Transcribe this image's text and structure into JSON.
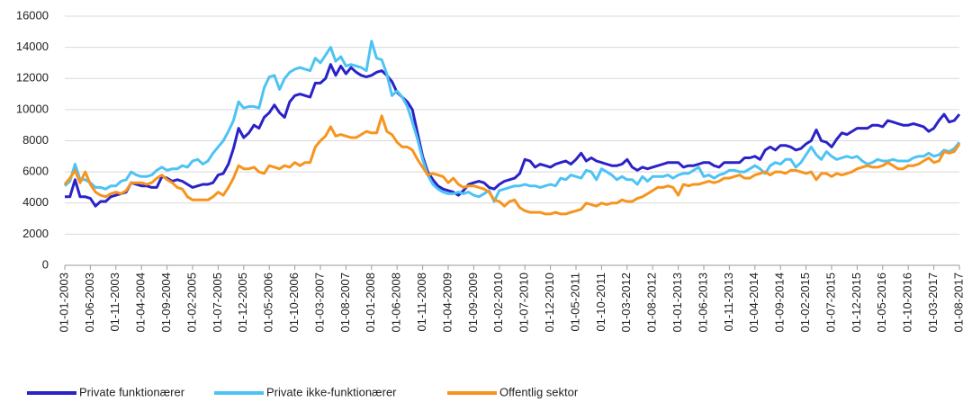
{
  "chart_data": {
    "type": "line",
    "categories": [
      "01-01-2003",
      null,
      null,
      null,
      null,
      "01-06-2003",
      null,
      null,
      null,
      null,
      "01-11-2003",
      null,
      null,
      null,
      null,
      "01-04-2004",
      null,
      null,
      null,
      null,
      "01-09-2004",
      null,
      null,
      null,
      null,
      "01-02-2005",
      null,
      null,
      null,
      null,
      "01-07-2005",
      null,
      null,
      null,
      null,
      "01-12-2005",
      null,
      null,
      null,
      null,
      "01-05-2006",
      null,
      null,
      null,
      null,
      "01-10-2006",
      null,
      null,
      null,
      null,
      "01-03-2007",
      null,
      null,
      null,
      null,
      "01-08-2007",
      null,
      null,
      null,
      null,
      "01-01-2008",
      null,
      null,
      null,
      null,
      "01-06-2008",
      null,
      null,
      null,
      null,
      "01-11-2008",
      null,
      null,
      null,
      null,
      "01-04-2009",
      null,
      null,
      null,
      null,
      "01-09-2009",
      null,
      null,
      null,
      null,
      "01-02-2010",
      null,
      null,
      null,
      null,
      "01-07-2010",
      null,
      null,
      null,
      null,
      "01-12-2010",
      null,
      null,
      null,
      null,
      "01-05-2011",
      null,
      null,
      null,
      null,
      "01-10-2011",
      null,
      null,
      null,
      null,
      "01-03-2012",
      null,
      null,
      null,
      null,
      "01-08-2012",
      null,
      null,
      null,
      null,
      "01-01-2013",
      null,
      null,
      null,
      null,
      "01-06-2013",
      null,
      null,
      null,
      null,
      "01-11-2013",
      null,
      null,
      null,
      null,
      "01-04-2014",
      null,
      null,
      null,
      null,
      "01-09-2014",
      null,
      null,
      null,
      null,
      "01-02-2015",
      null,
      null,
      null,
      null,
      "01-07-2015",
      null,
      null,
      null,
      null,
      "01-12-2015",
      null,
      null,
      null,
      null,
      "01-05-2016",
      null,
      null,
      null,
      null,
      "01-10-2016",
      null,
      null,
      null,
      null,
      "01-03-2017",
      null,
      null,
      null,
      null,
      "01-08-2017"
    ],
    "series": [
      {
        "name": "Private funktionærer",
        "color": "#2a22c8",
        "values": [
          4400,
          4400,
          5500,
          4400,
          4400,
          4300,
          3800,
          4100,
          4100,
          4400,
          4500,
          4600,
          4700,
          5300,
          5200,
          5100,
          5100,
          5000,
          5000,
          5700,
          5600,
          5400,
          5500,
          5400,
          5200,
          5000,
          5100,
          5200,
          5200,
          5300,
          5800,
          5900,
          6500,
          7500,
          8800,
          8200,
          8500,
          9000,
          8800,
          9500,
          9800,
          10300,
          9800,
          9500,
          10500,
          10900,
          11000,
          10900,
          10800,
          11700,
          11700,
          12000,
          12900,
          12200,
          12800,
          12300,
          12700,
          12400,
          12200,
          12100,
          12200,
          12400,
          12500,
          12200,
          11800,
          11100,
          10800,
          10500,
          10000,
          8500,
          7000,
          6000,
          5500,
          5100,
          4900,
          4800,
          4700,
          4500,
          4800,
          5200,
          5300,
          5400,
          5300,
          5000,
          4900,
          5200,
          5400,
          5500,
          5600,
          5900,
          6800,
          6700,
          6300,
          6500,
          6400,
          6300,
          6500,
          6600,
          6700,
          6500,
          6800,
          7200,
          6700,
          6900,
          6700,
          6600,
          6500,
          6400,
          6400,
          6500,
          6800,
          6300,
          6100,
          6300,
          6200,
          6300,
          6400,
          6500,
          6600,
          6600,
          6600,
          6300,
          6400,
          6400,
          6500,
          6600,
          6600,
          6400,
          6300,
          6600,
          6600,
          6600,
          6600,
          6900,
          6900,
          7000,
          6800,
          7400,
          7600,
          7400,
          7700,
          7700,
          7600,
          7400,
          7500,
          7800,
          8000,
          8700,
          8000,
          7900,
          7600,
          8100,
          8500,
          8400,
          8600,
          8800,
          8800,
          8800,
          9000,
          9000,
          8900,
          9300,
          9200,
          9100,
          9000,
          9000,
          9100,
          9000,
          8900,
          8600,
          8800,
          9300,
          9700,
          9200,
          9300,
          9700
        ]
      },
      {
        "name": "Private ikke-funktionærer",
        "color": "#4dc3f4",
        "values": [
          5100,
          5400,
          6500,
          5500,
          5500,
          5300,
          5000,
          5000,
          4900,
          5100,
          5100,
          5400,
          5500,
          6000,
          5800,
          5700,
          5700,
          5800,
          6100,
          6300,
          6100,
          6200,
          6200,
          6400,
          6300,
          6700,
          6800,
          6500,
          6700,
          7200,
          7600,
          8000,
          8600,
          9300,
          10500,
          10100,
          10200,
          10200,
          10100,
          11400,
          12100,
          12200,
          11300,
          12000,
          12400,
          12600,
          12700,
          12600,
          12500,
          13300,
          13000,
          13500,
          14000,
          13100,
          13400,
          12800,
          12900,
          12800,
          12700,
          12500,
          14400,
          13300,
          13200,
          12300,
          10900,
          11200,
          10800,
          10200,
          9200,
          8100,
          6800,
          5800,
          5200,
          4900,
          4700,
          4600,
          4600,
          4700,
          4600,
          4700,
          4500,
          4400,
          4600,
          4800,
          4100,
          4800,
          4900,
          5000,
          5100,
          5100,
          5200,
          5100,
          5100,
          5000,
          5100,
          5200,
          5100,
          5600,
          5500,
          5800,
          5700,
          5600,
          6100,
          6000,
          5500,
          6200,
          6000,
          5800,
          5500,
          5700,
          5500,
          5500,
          5200,
          5700,
          5400,
          5700,
          5700,
          5700,
          5800,
          5600,
          5800,
          5900,
          5900,
          6100,
          6300,
          5700,
          5800,
          5600,
          5800,
          5900,
          6100,
          6100,
          6000,
          6000,
          6200,
          6400,
          6200,
          5900,
          6400,
          6600,
          6500,
          6800,
          6800,
          6300,
          6600,
          7100,
          7600,
          7100,
          6800,
          7300,
          7000,
          6800,
          6900,
          7000,
          6900,
          7000,
          6700,
          6500,
          6600,
          6800,
          6700,
          6700,
          6800,
          6700,
          6700,
          6700,
          6900,
          7000,
          7000,
          7200,
          7000,
          7100,
          7400,
          7300,
          7500,
          7900
        ]
      },
      {
        "name": "Offentlig sektor",
        "color": "#f7941d",
        "values": [
          5200,
          5600,
          6100,
          5300,
          6000,
          5200,
          4700,
          4500,
          4400,
          4600,
          4700,
          4600,
          4800,
          5300,
          5300,
          5300,
          5200,
          5300,
          5600,
          5800,
          5500,
          5300,
          5000,
          4900,
          4400,
          4200,
          4200,
          4200,
          4200,
          4400,
          4700,
          4500,
          5000,
          5600,
          6400,
          6200,
          6200,
          6300,
          6000,
          5900,
          6400,
          6300,
          6200,
          6400,
          6300,
          6600,
          6400,
          6600,
          6600,
          7600,
          8000,
          8300,
          8900,
          8300,
          8400,
          8300,
          8200,
          8200,
          8400,
          8600,
          8500,
          8500,
          9600,
          8600,
          8400,
          7900,
          7600,
          7600,
          7400,
          6800,
          6300,
          5800,
          5900,
          5800,
          5700,
          5300,
          5600,
          5200,
          5000,
          5100,
          5100,
          5000,
          4900,
          4700,
          4200,
          4100,
          3800,
          4100,
          4200,
          3700,
          3500,
          3400,
          3400,
          3400,
          3300,
          3300,
          3400,
          3300,
          3300,
          3400,
          3500,
          3600,
          4000,
          3900,
          3800,
          4000,
          3900,
          4000,
          4000,
          4200,
          4100,
          4100,
          4300,
          4400,
          4600,
          4800,
          5000,
          5000,
          5100,
          5000,
          4500,
          5200,
          5100,
          5200,
          5200,
          5300,
          5400,
          5300,
          5400,
          5600,
          5600,
          5700,
          5800,
          5600,
          5600,
          5800,
          5900,
          6000,
          5800,
          6000,
          6000,
          5900,
          6100,
          6100,
          6000,
          5900,
          6000,
          5500,
          5900,
          5900,
          5700,
          5900,
          5800,
          5900,
          6000,
          6200,
          6300,
          6400,
          6300,
          6300,
          6400,
          6600,
          6400,
          6200,
          6200,
          6400,
          6400,
          6500,
          6700,
          6900,
          6600,
          6700,
          7300,
          7200,
          7300,
          7800
        ]
      }
    ],
    "ylim": [
      0,
      16000
    ],
    "yticks": [
      0,
      2000,
      4000,
      6000,
      8000,
      10000,
      12000,
      14000,
      16000
    ],
    "grid": true,
    "legend": "bottom"
  }
}
